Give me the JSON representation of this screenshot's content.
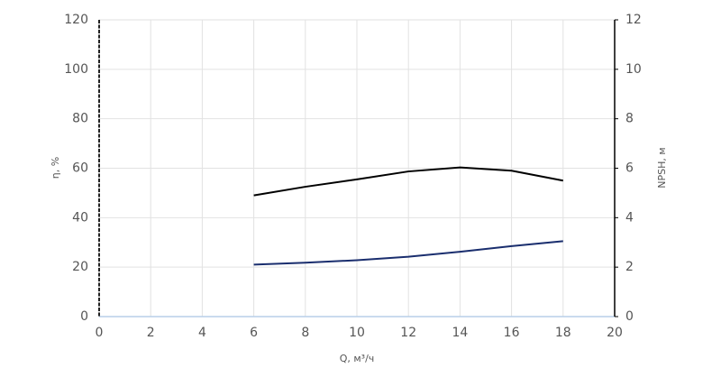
{
  "chart_data": {
    "type": "line",
    "x_label": "Q, м³/ч",
    "y_label": "η, %",
    "y2_label": "NPSH, м",
    "x": [
      6,
      8,
      10,
      12,
      14,
      16,
      18
    ],
    "series": [
      {
        "name": "η",
        "color": "#000000",
        "values": [
          49,
          52.5,
          55.5,
          58.7,
          60.3,
          59,
          55
        ]
      },
      {
        "name": "NPSH",
        "color": "#1a2e6e",
        "axis": "y2",
        "values": [
          2.1,
          2.18,
          2.28,
          2.42,
          2.62,
          2.85,
          3.05
        ]
      }
    ],
    "xlim": [
      0,
      20
    ],
    "xticks": [
      0,
      2,
      4,
      6,
      8,
      10,
      12,
      14,
      16,
      18,
      20
    ],
    "ylim": [
      0,
      120
    ],
    "yticks": [
      0,
      20,
      40,
      60,
      80,
      100,
      120
    ],
    "y2lim": [
      0,
      12
    ],
    "y2ticks": [
      0,
      2,
      4,
      6,
      8,
      10,
      12
    ],
    "grid": true
  }
}
